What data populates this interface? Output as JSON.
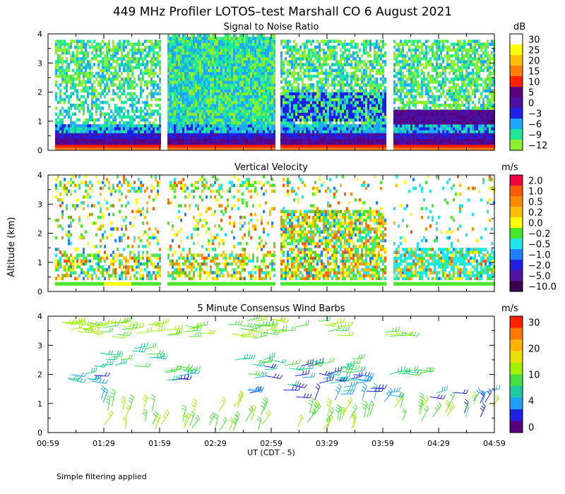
{
  "title": "449 MHz Profiler LOTOS–test Marshall CO  6 August 2021",
  "ylabel": "Altitude (km)",
  "xlabel": "UT  (CDT - 5)",
  "footnote": "Simple filtering applied",
  "x_ticks": [
    "00:59",
    "01:29",
    "01:59",
    "02:29",
    "02:59",
    "03:29",
    "03:59",
    "04:29",
    "04:59"
  ],
  "y_ticks": [
    "0",
    "1",
    "2",
    "3",
    "4"
  ],
  "chart_data": [
    {
      "type": "heatmap",
      "title": "Signal to Noise Ratio",
      "unit": "dB",
      "ylim": [
        0,
        4
      ],
      "x_range": [
        "00:59",
        "04:59"
      ],
      "colorbar_labels": [
        "30",
        "25",
        "20",
        "15",
        "10",
        "5",
        "0",
        "−3",
        "−6",
        "−9",
        "−12"
      ],
      "colors": [
        "#ffffff",
        "#ffff00",
        "#ffc000",
        "#ff8000",
        "#ff2000",
        "#5a007e",
        "#4a0fa0",
        "#1e20e8",
        "#1ea8ff",
        "#1ee89a",
        "#8cf030"
      ]
    },
    {
      "type": "heatmap",
      "title": "Vertical Velocity",
      "unit": "m/s",
      "ylim": [
        0,
        4
      ],
      "x_range": [
        "00:59",
        "04:59"
      ],
      "colorbar_labels": [
        "2.0",
        "1.0",
        "0.5",
        "0.2",
        "0.0",
        "−0.2",
        "−0.5",
        "−1.0",
        "−2.0",
        "−5.0",
        "−10.0"
      ],
      "colors": [
        "#f0003c",
        "#ff5a00",
        "#ff8c00",
        "#ffc000",
        "#ffff00",
        "#48e828",
        "#1ee8e8",
        "#1e80ff",
        "#2020e0",
        "#5014a0",
        "#3c0050"
      ]
    },
    {
      "type": "scatter",
      "title": "5 Minute Consensus Wind Barbs",
      "unit": "m/s",
      "ylim": [
        0,
        4
      ],
      "x_range": [
        "00:59",
        "04:59"
      ],
      "colorbar_labels": [
        "30",
        "20",
        "10",
        "4",
        "0"
      ],
      "colors": [
        "#ff2000",
        "#ff7800",
        "#ffb400",
        "#e8e000",
        "#a0f000",
        "#48e040",
        "#1ec8a0",
        "#1ea0ff",
        "#2020e0",
        "#5a007e"
      ]
    }
  ]
}
